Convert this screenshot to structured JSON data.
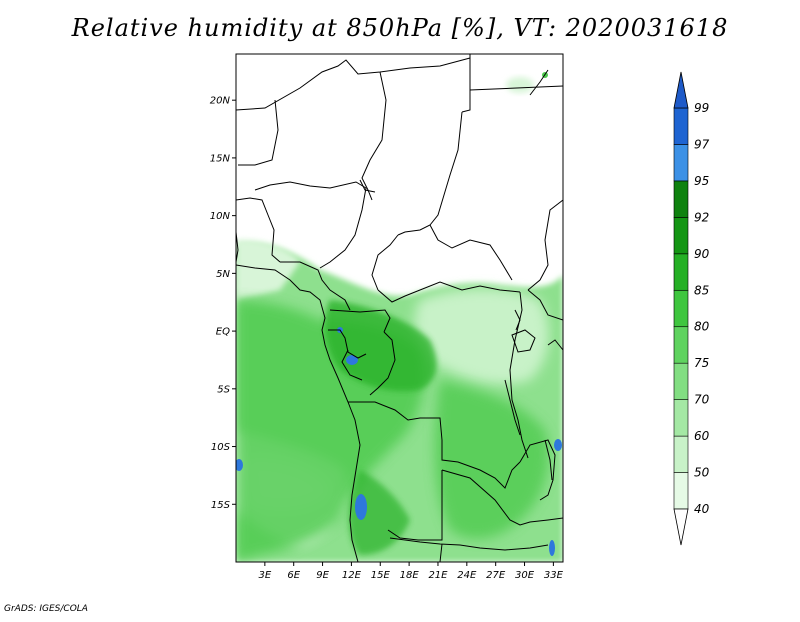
{
  "title": "Relative humidity at 850hPa [%], VT: 2020031618",
  "credit": "GrADS: IGES/COLA",
  "map": {
    "lon_range": [
      0,
      34
    ],
    "lat_range": [
      -20,
      24
    ],
    "lat_ticks": [
      {
        "value": 20,
        "label": "20N"
      },
      {
        "value": 15,
        "label": "15N"
      },
      {
        "value": 10,
        "label": "10N"
      },
      {
        "value": 5,
        "label": "5N"
      },
      {
        "value": 0,
        "label": "EQ"
      },
      {
        "value": -5,
        "label": "5S"
      },
      {
        "value": -10,
        "label": "10S"
      },
      {
        "value": -15,
        "label": "15S"
      }
    ],
    "lon_ticks": [
      {
        "value": 3,
        "label": "3E"
      },
      {
        "value": 6,
        "label": "6E"
      },
      {
        "value": 9,
        "label": "9E"
      },
      {
        "value": 12,
        "label": "12E"
      },
      {
        "value": 15,
        "label": "15E"
      },
      {
        "value": 18,
        "label": "18E"
      },
      {
        "value": 21,
        "label": "21E"
      },
      {
        "value": 24,
        "label": "24E"
      },
      {
        "value": 27,
        "label": "27E"
      },
      {
        "value": 30,
        "label": "30E"
      },
      {
        "value": 33,
        "label": "33E"
      }
    ]
  },
  "colorbar": {
    "levels": [
      {
        "label": "40",
        "color": "#ffffff"
      },
      {
        "label": "50",
        "color": "#e6fae6"
      },
      {
        "label": "60",
        "color": "#c8f2c8"
      },
      {
        "label": "70",
        "color": "#a4e8a4"
      },
      {
        "label": "75",
        "color": "#82de82"
      },
      {
        "label": "80",
        "color": "#5fd35f"
      },
      {
        "label": "85",
        "color": "#3fc63f"
      },
      {
        "label": "90",
        "color": "#25b025"
      },
      {
        "label": "92",
        "color": "#149614"
      },
      {
        "label": "95",
        "color": "#0f820f"
      },
      {
        "label": "97",
        "color": "#3c91e6"
      },
      {
        "label": "99",
        "color": "#1e64d2"
      }
    ],
    "top_color": "#1e5ac8",
    "bottom_color": "#ffffff"
  },
  "colors": {
    "dry": "#ffffff",
    "light": "#d8f5d8",
    "mid": "#8ee08e",
    "moist": "#4fcb4f",
    "wet": "#2bb22b",
    "saturated": "#2e78dc"
  }
}
